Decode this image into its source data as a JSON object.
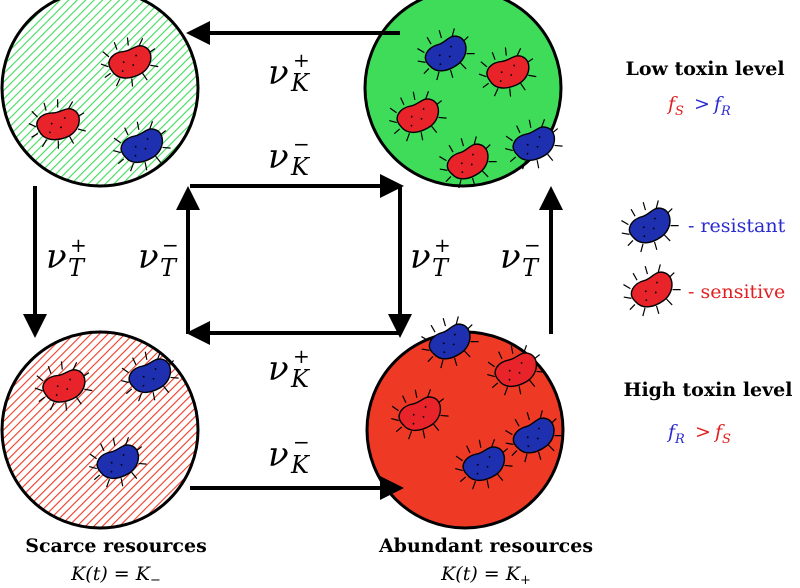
{
  "colors": {
    "green": "#3fdc5a",
    "red": "#ee3a25",
    "resistant": "#1e2fb0",
    "sensitive": "#e8242a",
    "text_blue": "#2a2ad0",
    "text_red": "#e02020"
  },
  "rates": {
    "nu": "ν",
    "K": "K",
    "T": "T",
    "plus": "+",
    "minus": "−"
  },
  "low_toxin": {
    "title": "Low toxin level",
    "fs": "f",
    "fs_sub": "S",
    "gt": ">",
    "fr": "f",
    "fr_sub": "R"
  },
  "high_toxin": {
    "title": "High toxin level",
    "fr": "f",
    "fr_sub": "R",
    "gt": ">",
    "fs": "f",
    "fs_sub": "S"
  },
  "legend": {
    "resistant": "- resistant",
    "sensitive": "- sensitive"
  },
  "scarce": {
    "title": "Scarce resources",
    "eq": "K(t) = K",
    "eq_sub": "−"
  },
  "abundant": {
    "title": "Abundant resources",
    "eq": "K(t) = K",
    "eq_sub": "+"
  }
}
